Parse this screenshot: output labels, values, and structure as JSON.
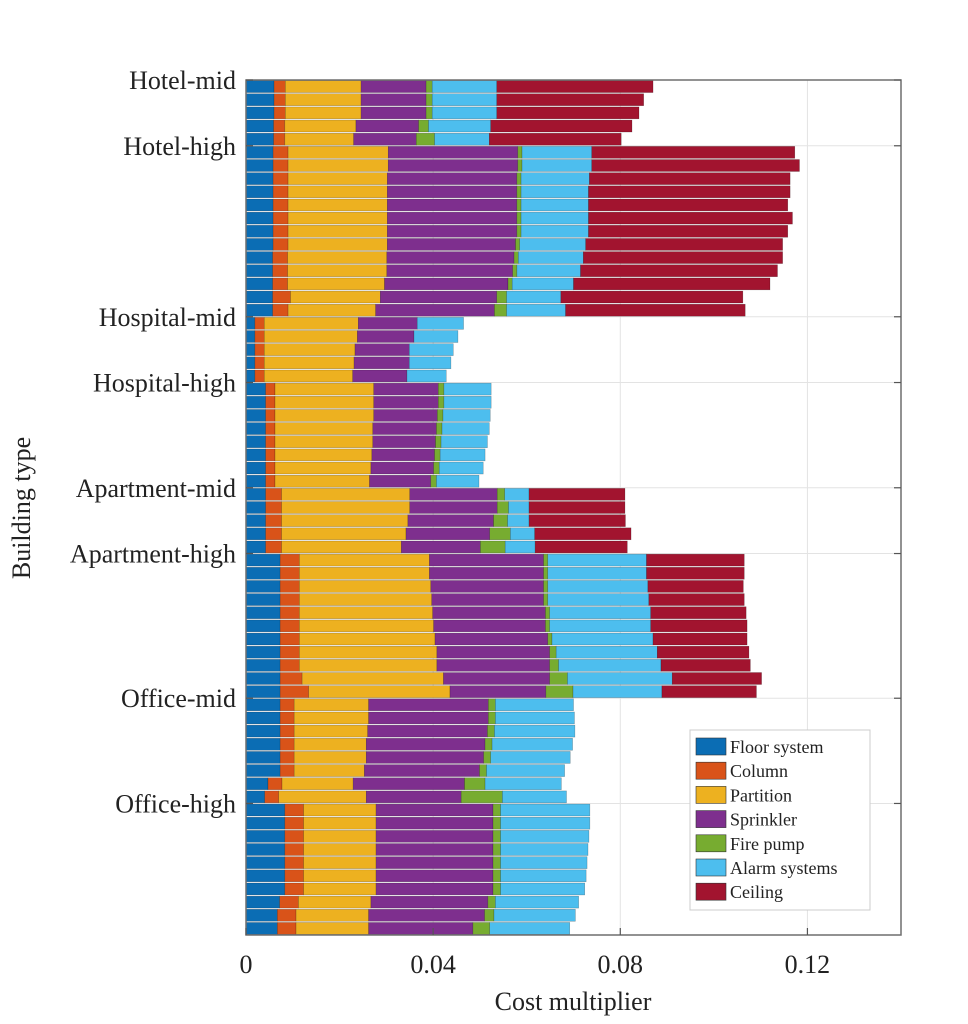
{
  "chart_data": {
    "type": "bar",
    "orientation": "horizontal-stacked",
    "xlabel": "Cost multiplier",
    "ylabel": "Building type",
    "xlim": [
      0,
      0.14
    ],
    "xticks": [
      0,
      0.04,
      0.08,
      0.12
    ],
    "xtick_labels": [
      "0",
      "0.04",
      "0.08",
      "0.12"
    ],
    "grid": true,
    "legend_position": "bottom-right",
    "components": [
      {
        "name": "Floor system",
        "color": "#0b6db4"
      },
      {
        "name": "Column",
        "color": "#d95319"
      },
      {
        "name": "Partition",
        "color": "#edb120"
      },
      {
        "name": "Sprinkler",
        "color": "#7e2f8e"
      },
      {
        "name": "Fire pump",
        "color": "#77ac30"
      },
      {
        "name": "Alarm systems",
        "color": "#4dbeee"
      },
      {
        "name": "Ceiling",
        "color": "#a2142f"
      }
    ],
    "categories": [
      "Hotel-mid",
      "Hotel-high",
      "Hospital-mid",
      "Hospital-high",
      "Apartment-mid",
      "Apartment-high",
      "Office-mid",
      "Office-high"
    ],
    "series": [
      {
        "name": "Hotel-mid",
        "rows": [
          [
            0.006,
            0.0024,
            0.0162,
            0.0139,
            0.0013,
            0.0138,
            0.0334
          ],
          [
            0.006,
            0.0024,
            0.0162,
            0.0139,
            0.0013,
            0.0138,
            0.0314
          ],
          [
            0.006,
            0.0024,
            0.0162,
            0.0139,
            0.0013,
            0.0138,
            0.0304
          ],
          [
            0.0059,
            0.0024,
            0.0152,
            0.0134,
            0.0021,
            0.0133,
            0.0302
          ],
          [
            0.0059,
            0.0024,
            0.0147,
            0.0134,
            0.0039,
            0.0117,
            0.0282
          ]
        ]
      },
      {
        "name": "Hotel-high",
        "rows": [
          [
            0.0058,
            0.0032,
            0.0214,
            0.0277,
            0.0009,
            0.0149,
            0.0434
          ],
          [
            0.0058,
            0.0032,
            0.0214,
            0.0277,
            0.0009,
            0.0149,
            0.0444
          ],
          [
            0.0058,
            0.0032,
            0.0212,
            0.0277,
            0.0009,
            0.0146,
            0.0429
          ],
          [
            0.0058,
            0.0032,
            0.0212,
            0.0277,
            0.0009,
            0.0144,
            0.0431
          ],
          [
            0.0058,
            0.0032,
            0.0212,
            0.0277,
            0.0009,
            0.0144,
            0.0426
          ],
          [
            0.0058,
            0.0032,
            0.0212,
            0.0277,
            0.0009,
            0.0144,
            0.0436
          ],
          [
            0.0058,
            0.0032,
            0.0212,
            0.0277,
            0.0009,
            0.0144,
            0.0426
          ],
          [
            0.0058,
            0.0032,
            0.0212,
            0.0274,
            0.0009,
            0.0141,
            0.0421
          ],
          [
            0.0057,
            0.0032,
            0.0212,
            0.0272,
            0.0009,
            0.0139,
            0.0426
          ],
          [
            0.0057,
            0.0032,
            0.0212,
            0.0269,
            0.0009,
            0.0136,
            0.0421
          ],
          [
            0.0057,
            0.0032,
            0.0207,
            0.0264,
            0.0009,
            0.0131,
            0.042
          ],
          [
            0.0057,
            0.0038,
            0.0192,
            0.0249,
            0.0021,
            0.0116,
            0.0389
          ],
          [
            0.0057,
            0.0033,
            0.0187,
            0.0254,
            0.0026,
            0.0126,
            0.0384
          ]
        ]
      },
      {
        "name": "Hospital-mid",
        "rows": [
          [
            0.0019,
            0.002,
            0.0201,
            0.0126,
            0.0,
            0.0099,
            0.0
          ],
          [
            0.0019,
            0.002,
            0.0199,
            0.0121,
            0.0,
            0.0094,
            0.0
          ],
          [
            0.0019,
            0.002,
            0.0194,
            0.0116,
            0.0,
            0.0094,
            0.0
          ],
          [
            0.0019,
            0.002,
            0.0192,
            0.0118,
            0.0,
            0.0089,
            0.0
          ],
          [
            0.0019,
            0.002,
            0.0189,
            0.0116,
            0.0,
            0.0084,
            0.0
          ]
        ]
      },
      {
        "name": "Hospital-high",
        "rows": [
          [
            0.0042,
            0.002,
            0.0211,
            0.0138,
            0.0012,
            0.0101,
            0.0
          ],
          [
            0.0042,
            0.002,
            0.0211,
            0.0138,
            0.0012,
            0.0101,
            0.0
          ],
          [
            0.0042,
            0.002,
            0.0211,
            0.0136,
            0.0012,
            0.0101,
            0.0
          ],
          [
            0.0042,
            0.002,
            0.0209,
            0.0136,
            0.0012,
            0.0101,
            0.0
          ],
          [
            0.0042,
            0.002,
            0.0209,
            0.0134,
            0.0012,
            0.0099,
            0.0
          ],
          [
            0.0042,
            0.002,
            0.0207,
            0.0134,
            0.0012,
            0.0096,
            0.0
          ],
          [
            0.0042,
            0.002,
            0.0205,
            0.0134,
            0.0012,
            0.0094,
            0.0
          ],
          [
            0.0042,
            0.002,
            0.0202,
            0.0131,
            0.0012,
            0.0091,
            0.0
          ]
        ]
      },
      {
        "name": "Apartment-mid",
        "rows": [
          [
            0.0042,
            0.0034,
            0.0274,
            0.0187,
            0.0016,
            0.0052,
            0.0205
          ],
          [
            0.0042,
            0.0034,
            0.0274,
            0.0187,
            0.0024,
            0.0044,
            0.0205
          ],
          [
            0.0042,
            0.0034,
            0.027,
            0.0183,
            0.003,
            0.0046,
            0.0206
          ],
          [
            0.0042,
            0.0034,
            0.0266,
            0.0179,
            0.0044,
            0.0052,
            0.0206
          ],
          [
            0.0042,
            0.0034,
            0.0256,
            0.0169,
            0.0053,
            0.0064,
            0.0197
          ]
        ]
      },
      {
        "name": "Apartment-high",
        "rows": [
          [
            0.0073,
            0.0041,
            0.0278,
            0.0244,
            0.0009,
            0.0211,
            0.0209
          ],
          [
            0.0073,
            0.0041,
            0.0278,
            0.0244,
            0.0009,
            0.0211,
            0.0209
          ],
          [
            0.0073,
            0.0041,
            0.0281,
            0.0241,
            0.0009,
            0.0214,
            0.0204
          ],
          [
            0.0073,
            0.0041,
            0.0283,
            0.0239,
            0.0009,
            0.0216,
            0.0204
          ],
          [
            0.0073,
            0.0041,
            0.0285,
            0.0241,
            0.0009,
            0.0216,
            0.0204
          ],
          [
            0.0073,
            0.0041,
            0.0287,
            0.0239,
            0.0009,
            0.0216,
            0.0206
          ],
          [
            0.0073,
            0.0041,
            0.029,
            0.0241,
            0.0009,
            0.0216,
            0.0201
          ],
          [
            0.0073,
            0.0041,
            0.0294,
            0.0241,
            0.0014,
            0.0216,
            0.0196
          ],
          [
            0.0073,
            0.0041,
            0.0294,
            0.0241,
            0.0019,
            0.0219,
            0.0191
          ],
          [
            0.0073,
            0.0047,
            0.0302,
            0.0227,
            0.0038,
            0.0224,
            0.0191
          ],
          [
            0.0073,
            0.0061,
            0.0302,
            0.0205,
            0.0058,
            0.019,
            0.0202
          ]
        ]
      },
      {
        "name": "Office-mid",
        "rows": [
          [
            0.0073,
            0.003,
            0.0159,
            0.0256,
            0.0015,
            0.0167,
            0.0
          ],
          [
            0.0073,
            0.003,
            0.0159,
            0.0256,
            0.0015,
            0.0169,
            0.0
          ],
          [
            0.0073,
            0.003,
            0.0157,
            0.0256,
            0.0015,
            0.0172,
            0.0
          ],
          [
            0.0073,
            0.003,
            0.0154,
            0.0254,
            0.0015,
            0.0172,
            0.0
          ],
          [
            0.0073,
            0.003,
            0.0154,
            0.0251,
            0.0015,
            0.017,
            0.0
          ],
          [
            0.0073,
            0.003,
            0.015,
            0.0246,
            0.0015,
            0.0167,
            0.0
          ],
          [
            0.0047,
            0.003,
            0.0152,
            0.0238,
            0.0044,
            0.0163,
            0.0
          ],
          [
            0.004,
            0.003,
            0.0187,
            0.0203,
            0.0088,
            0.0137,
            0.0
          ]
        ]
      },
      {
        "name": "Office-high",
        "rows": [
          [
            0.0083,
            0.004,
            0.0155,
            0.025,
            0.0016,
            0.0191,
            0.0
          ],
          [
            0.0083,
            0.004,
            0.0155,
            0.025,
            0.0016,
            0.0191,
            0.0
          ],
          [
            0.0083,
            0.004,
            0.0155,
            0.025,
            0.0016,
            0.0189,
            0.0
          ],
          [
            0.0083,
            0.004,
            0.0155,
            0.025,
            0.0016,
            0.0187,
            0.0
          ],
          [
            0.0083,
            0.004,
            0.0155,
            0.025,
            0.0016,
            0.0185,
            0.0
          ],
          [
            0.0083,
            0.004,
            0.0155,
            0.025,
            0.0016,
            0.0183,
            0.0
          ],
          [
            0.0083,
            0.004,
            0.0155,
            0.025,
            0.0016,
            0.018,
            0.0
          ],
          [
            0.0072,
            0.004,
            0.0155,
            0.025,
            0.0016,
            0.0178,
            0.0
          ],
          [
            0.0067,
            0.004,
            0.0155,
            0.0248,
            0.002,
            0.0174,
            0.0
          ],
          [
            0.0067,
            0.004,
            0.0155,
            0.0223,
            0.0036,
            0.0171,
            0.0
          ]
        ]
      }
    ]
  }
}
